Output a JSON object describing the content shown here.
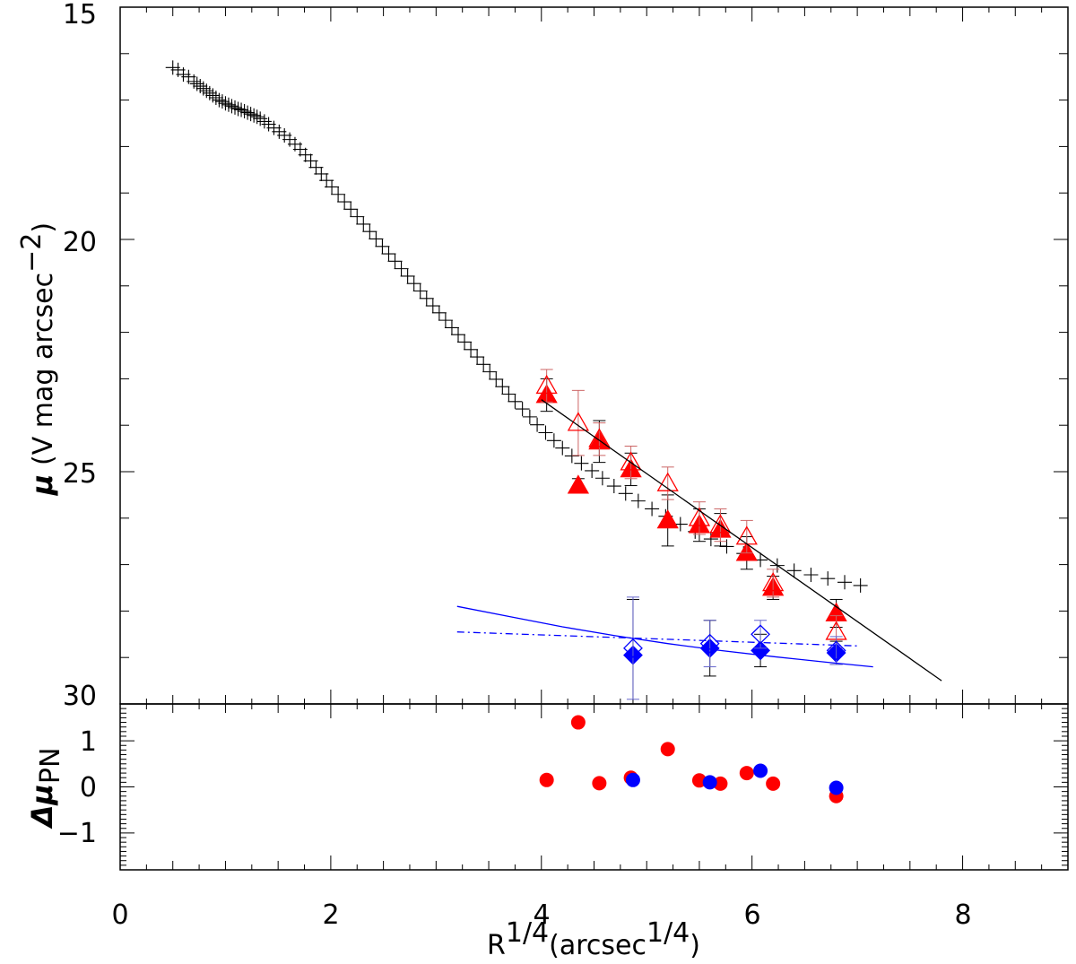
{
  "chart_data": [
    {
      "panel": "top",
      "type": "scatter",
      "xlim": [
        0,
        9
      ],
      "ylim": [
        30,
        15
      ],
      "x_ticks": [
        "0",
        "2",
        "4",
        "6",
        "8"
      ],
      "y_ticks": [
        "15",
        "20",
        "25",
        "30"
      ],
      "ylabel": {
        "main": "μ",
        "paren": " (V mag arcsec",
        "exp": "−2",
        "close": ")"
      },
      "series": [
        {
          "marker": "plus",
          "color": "#000000",
          "points": [
            [
              0.5,
              16.3
            ],
            [
              0.55,
              16.35
            ],
            [
              0.6,
              16.45
            ],
            [
              0.65,
              16.5
            ],
            [
              0.7,
              16.6
            ],
            [
              0.73,
              16.65
            ],
            [
              0.76,
              16.7
            ],
            [
              0.79,
              16.75
            ],
            [
              0.82,
              16.8
            ],
            [
              0.85,
              16.85
            ],
            [
              0.88,
              16.9
            ],
            [
              0.91,
              16.95
            ],
            [
              0.94,
              17.0
            ],
            [
              0.97,
              17.03
            ],
            [
              1.0,
              17.07
            ],
            [
              1.03,
              17.1
            ],
            [
              1.06,
              17.13
            ],
            [
              1.09,
              17.16
            ],
            [
              1.12,
              17.19
            ],
            [
              1.15,
              17.21
            ],
            [
              1.18,
              17.24
            ],
            [
              1.21,
              17.27
            ],
            [
              1.24,
              17.3
            ],
            [
              1.27,
              17.33
            ],
            [
              1.3,
              17.36
            ],
            [
              1.33,
              17.4
            ],
            [
              1.37,
              17.46
            ],
            [
              1.41,
              17.52
            ],
            [
              1.46,
              17.6
            ],
            [
              1.51,
              17.68
            ],
            [
              1.56,
              17.76
            ],
            [
              1.61,
              17.85
            ],
            [
              1.66,
              17.95
            ],
            [
              1.71,
              18.06
            ],
            [
              1.76,
              18.18
            ],
            [
              1.81,
              18.31
            ],
            [
              1.86,
              18.45
            ],
            [
              1.91,
              18.59
            ],
            [
              1.96,
              18.73
            ],
            [
              2.01,
              18.87
            ],
            [
              2.07,
              19.03
            ],
            [
              2.13,
              19.19
            ],
            [
              2.19,
              19.35
            ],
            [
              2.25,
              19.51
            ],
            [
              2.31,
              19.67
            ],
            [
              2.37,
              19.83
            ],
            [
              2.43,
              19.99
            ],
            [
              2.49,
              20.15
            ],
            [
              2.55,
              20.31
            ],
            [
              2.61,
              20.47
            ],
            [
              2.67,
              20.63
            ],
            [
              2.73,
              20.79
            ],
            [
              2.79,
              20.95
            ],
            [
              2.85,
              21.11
            ],
            [
              2.91,
              21.27
            ],
            [
              2.97,
              21.43
            ],
            [
              3.03,
              21.58
            ],
            [
              3.09,
              21.74
            ],
            [
              3.15,
              21.9
            ],
            [
              3.21,
              22.05
            ],
            [
              3.27,
              22.21
            ],
            [
              3.33,
              22.37
            ],
            [
              3.39,
              22.53
            ],
            [
              3.45,
              22.69
            ],
            [
              3.51,
              22.85
            ],
            [
              3.57,
              23.01
            ],
            [
              3.63,
              23.17
            ],
            [
              3.69,
              23.33
            ],
            [
              3.75,
              23.49
            ],
            [
              3.82,
              23.65
            ],
            [
              3.89,
              23.82
            ],
            [
              3.96,
              23.99
            ],
            [
              4.04,
              24.16
            ],
            [
              4.12,
              24.33
            ],
            [
              4.2,
              24.49
            ],
            [
              4.29,
              24.66
            ],
            [
              4.38,
              24.82
            ],
            [
              4.48,
              24.98
            ],
            [
              4.58,
              25.14
            ],
            [
              4.69,
              25.31
            ],
            [
              4.8,
              25.47
            ],
            [
              4.92,
              25.63
            ],
            [
              5.05,
              25.8
            ],
            [
              5.18,
              25.96
            ],
            [
              5.32,
              26.13
            ],
            [
              5.46,
              26.29
            ],
            [
              5.61,
              26.45
            ],
            [
              5.76,
              26.61
            ],
            [
              5.92,
              26.76
            ],
            [
              6.08,
              26.9
            ],
            [
              6.24,
              27.02
            ],
            [
              6.4,
              27.13
            ],
            [
              6.56,
              27.22
            ],
            [
              6.72,
              27.3
            ],
            [
              6.88,
              27.38
            ],
            [
              7.03,
              27.45
            ]
          ]
        },
        {
          "marker": "triangle-filled",
          "color": "#ff0000",
          "points": [
            [
              4.05,
              23.35
            ],
            [
              4.35,
              25.3
            ],
            [
              4.55,
              24.35
            ],
            [
              4.85,
              24.95
            ],
            [
              5.2,
              26.05
            ],
            [
              5.5,
              26.15
            ],
            [
              5.7,
              26.25
            ],
            [
              5.95,
              26.75
            ],
            [
              6.2,
              27.5
            ],
            [
              6.8,
              28.05
            ]
          ],
          "errors": [
            0.35,
            0.15,
            0.45,
            0.35,
            0.55,
            0.35,
            0.35,
            0.35,
            0.25,
            0.3
          ]
        },
        {
          "marker": "triangle-open",
          "color": "#ff0000",
          "points": [
            [
              4.05,
              23.15
            ],
            [
              4.35,
              23.95
            ],
            [
              4.55,
              24.3
            ],
            [
              4.85,
              24.8
            ],
            [
              5.2,
              25.25
            ],
            [
              5.5,
              26.0
            ],
            [
              5.7,
              26.15
            ],
            [
              5.95,
              26.4
            ],
            [
              6.2,
              27.4
            ],
            [
              6.8,
              28.45
            ]
          ],
          "errors": [
            0.35,
            0.7,
            0.35,
            0.35,
            0.35,
            0.35,
            0.35,
            0.35,
            0.3,
            0.35
          ]
        },
        {
          "marker": "diamond-filled",
          "color": "#0000ff",
          "points": [
            [
              4.87,
              28.95
            ],
            [
              5.6,
              28.8
            ],
            [
              6.08,
              28.85
            ],
            [
              6.8,
              28.9
            ]
          ],
          "errors": [
            1.2,
            0.6,
            0.35,
            0.25
          ]
        },
        {
          "marker": "diamond-open",
          "color": "#0000ff",
          "points": [
            [
              4.87,
              28.8
            ],
            [
              5.6,
              28.7
            ],
            [
              6.08,
              28.5
            ],
            [
              6.8,
              28.85
            ]
          ],
          "errors": [
            1.1,
            0.5,
            0.3,
            0.3
          ]
        },
        {
          "marker": "line",
          "color": "#000000",
          "style": "solid",
          "points": [
            [
              4.0,
              23.45
            ],
            [
              7.8,
              29.5
            ]
          ]
        },
        {
          "marker": "line",
          "color": "#0000ff",
          "style": "solid",
          "points": [
            [
              3.2,
              27.9
            ],
            [
              3.7,
              28.12
            ],
            [
              4.2,
              28.34
            ],
            [
              4.7,
              28.53
            ],
            [
              5.2,
              28.7
            ],
            [
              5.7,
              28.85
            ],
            [
              6.2,
              28.98
            ],
            [
              6.7,
              29.1
            ],
            [
              7.15,
              29.2
            ]
          ]
        },
        {
          "marker": "line",
          "color": "#0000ff",
          "style": "dash-dot",
          "points": [
            [
              3.2,
              28.45
            ],
            [
              7.0,
              28.75
            ]
          ]
        }
      ]
    },
    {
      "panel": "bottom",
      "type": "scatter",
      "xlim": [
        0,
        9
      ],
      "ylim": [
        -1.8,
        1.8
      ],
      "x_ticks": [
        "0",
        "2",
        "4",
        "6",
        "8"
      ],
      "y_ticks": [
        "1",
        "0",
        "−1"
      ],
      "ylabel": {
        "main": "Δμ",
        "sub": "PN"
      },
      "xlabel": {
        "base": "R",
        "exp": "1/4",
        "paren": "(arcsec",
        "paren_exp": "1/4",
        "close": ")"
      },
      "series": [
        {
          "marker": "circle-filled",
          "color": "#ff0000",
          "points": [
            [
              4.05,
              0.15
            ],
            [
              4.35,
              1.4
            ],
            [
              4.55,
              0.08
            ],
            [
              4.85,
              0.2
            ],
            [
              5.2,
              0.82
            ],
            [
              5.5,
              0.14
            ],
            [
              5.7,
              0.07
            ],
            [
              5.95,
              0.3
            ],
            [
              6.2,
              0.07
            ],
            [
              6.8,
              -0.2
            ]
          ]
        },
        {
          "marker": "circle-filled",
          "color": "#0000ff",
          "points": [
            [
              4.87,
              0.15
            ],
            [
              5.6,
              0.1
            ],
            [
              6.08,
              0.35
            ],
            [
              6.8,
              -0.02
            ]
          ]
        }
      ]
    }
  ]
}
